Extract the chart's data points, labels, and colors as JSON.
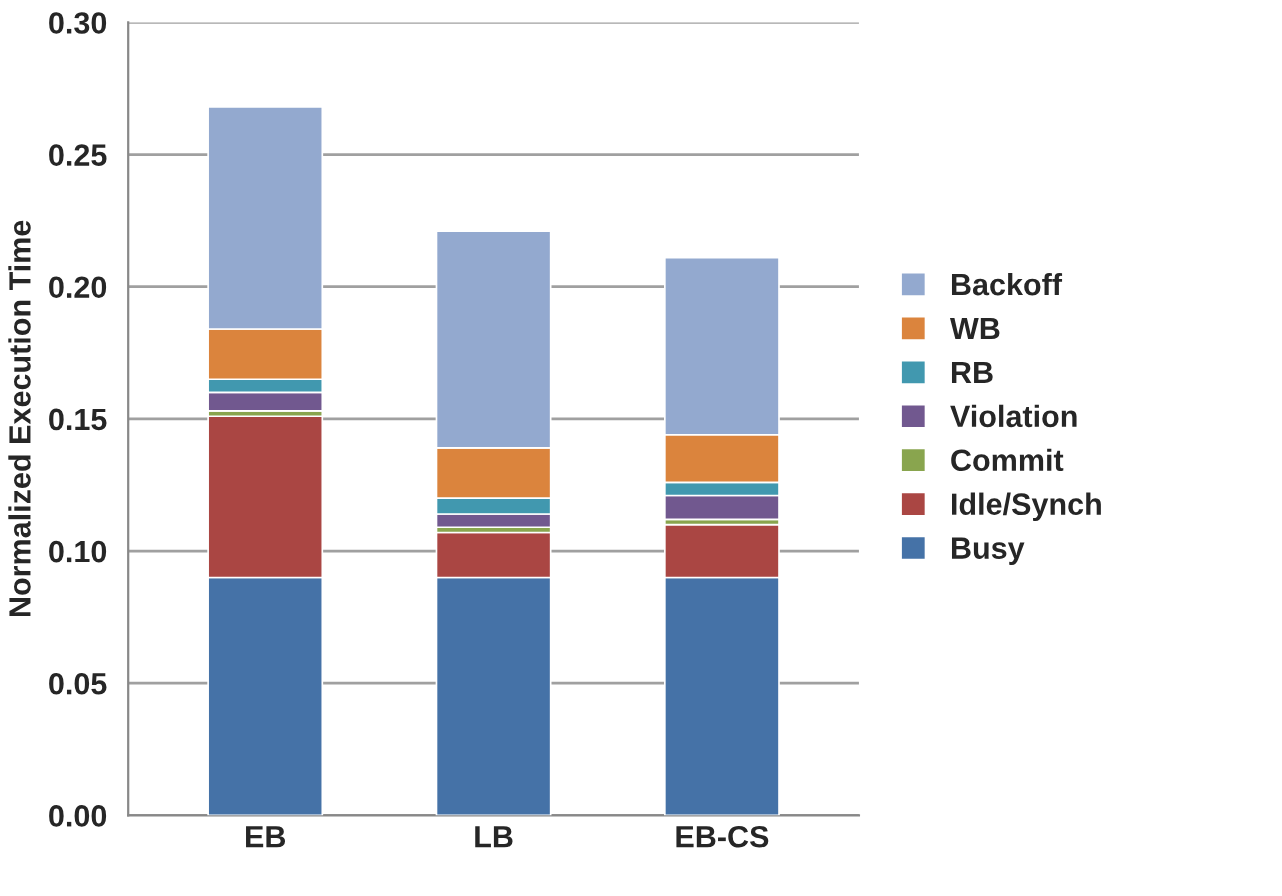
{
  "chart_data": {
    "type": "bar",
    "stacked": true,
    "ylabel": "Normalized Execution Time",
    "categories": [
      "EB",
      "LB",
      "EB-CS"
    ],
    "series": [
      {
        "name": "Busy",
        "color": "#4572a7",
        "values": [
          0.09,
          0.09,
          0.09
        ]
      },
      {
        "name": "Idle/Synch",
        "color": "#aa4643",
        "values": [
          0.061,
          0.017,
          0.02
        ]
      },
      {
        "name": "Commit",
        "color": "#89a54e",
        "values": [
          0.002,
          0.002,
          0.002
        ]
      },
      {
        "name": "Violation",
        "color": "#71588f",
        "values": [
          0.007,
          0.005,
          0.009
        ]
      },
      {
        "name": "RB",
        "color": "#4198af",
        "values": [
          0.005,
          0.006,
          0.005
        ]
      },
      {
        "name": "WB",
        "color": "#db843d",
        "values": [
          0.019,
          0.019,
          0.018
        ]
      },
      {
        "name": "Backoff",
        "color": "#93a9cf",
        "values": [
          0.084,
          0.082,
          0.067
        ]
      }
    ],
    "ylim": [
      0,
      0.3
    ],
    "yticks": [
      {
        "value": 0,
        "label": "0.00"
      },
      {
        "value": 0.05,
        "label": "0.05"
      },
      {
        "value": 0.1,
        "label": "0.10"
      },
      {
        "value": 0.15,
        "label": "0.15"
      },
      {
        "value": 0.2,
        "label": "0.20"
      },
      {
        "value": 0.25,
        "label": "0.25"
      },
      {
        "value": 0.3,
        "label": "0.30"
      }
    ],
    "grid": "y",
    "legend": "right"
  }
}
